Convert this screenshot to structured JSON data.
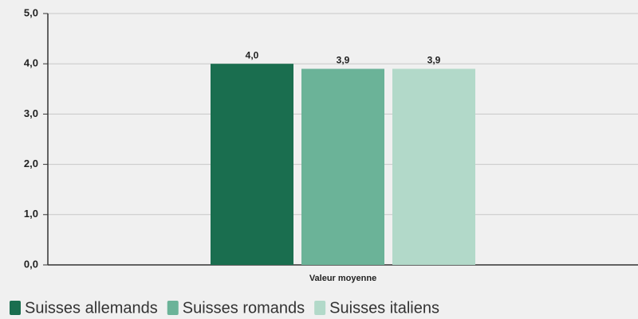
{
  "chart_data": {
    "type": "bar",
    "categories": [
      "Valeur moyenne"
    ],
    "series": [
      {
        "name": "Suisses allemands",
        "color": "#1a6e4f",
        "values": [
          4.0
        ],
        "value_labels": [
          "4,0"
        ]
      },
      {
        "name": "Suisses romands",
        "color": "#6bb398",
        "values": [
          3.9
        ],
        "value_labels": [
          "3,9"
        ]
      },
      {
        "name": "Suisses italiens",
        "color": "#b2d9c9",
        "values": [
          3.9
        ],
        "value_labels": [
          "3,9"
        ]
      }
    ],
    "ylim": [
      0,
      5
    ],
    "yticks": [
      {
        "value": 0,
        "label": "0,0"
      },
      {
        "value": 1,
        "label": "1,0"
      },
      {
        "value": 2,
        "label": "2,0"
      },
      {
        "value": 3,
        "label": "3,0"
      },
      {
        "value": 4,
        "label": "4,0"
      },
      {
        "value": 5,
        "label": "5,0"
      }
    ],
    "grid": true
  }
}
